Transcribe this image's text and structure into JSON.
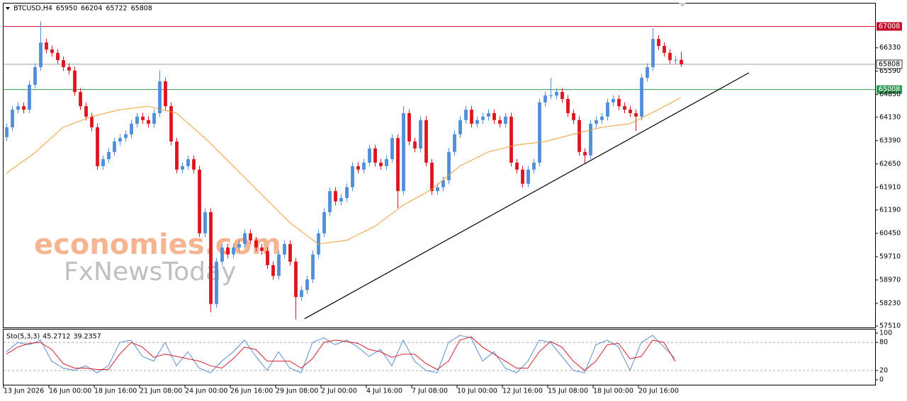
{
  "chart_data": {
    "type": "candlestick",
    "symbol": "BTCUSD,H4",
    "up_color": "#4f8fd9",
    "down_color": "#e0141e",
    "xlim": [
      -0.5,
      153.25
    ],
    "ylim": [
      57465,
      67735
    ],
    "yticks": [
      66330,
      65590,
      64850,
      64130,
      63390,
      62650,
      61910,
      61190,
      60450,
      59710,
      58970,
      58230,
      57510
    ],
    "xticks": [
      {
        "value": -0.5,
        "label": "13 Jun 2026"
      },
      {
        "value": 7.5,
        "label": "16 Jun 00:00"
      },
      {
        "value": 15.5,
        "label": "18 Jun 16:00"
      },
      {
        "value": 23.5,
        "label": "21 Jun 08:00"
      },
      {
        "value": 31.5,
        "label": "24 Jun 00:00"
      },
      {
        "value": 39.5,
        "label": "26 Jun 16:00"
      },
      {
        "value": 47.5,
        "label": "29 Jun 08:00"
      },
      {
        "value": 55.5,
        "label": "2 Jul 00:00"
      },
      {
        "value": 63.5,
        "label": "4 Jul 16:00"
      },
      {
        "value": 71.5,
        "label": "7 Jul 08:00"
      },
      {
        "value": 79.5,
        "label": "10 Jul 00:00"
      },
      {
        "value": 87.5,
        "label": "12 Jul 16:00"
      },
      {
        "value": 95.5,
        "label": "15 Jul 08:00"
      },
      {
        "value": 103.5,
        "label": "18 Jul 00:00"
      },
      {
        "value": 111.5,
        "label": "20 Jul 16:00"
      }
    ],
    "open": [
      63500,
      63810,
      64370,
      64480,
      64370,
      65160,
      65720,
      66500,
      66280,
      66170,
      65940,
      65720,
      65610,
      64930,
      64480,
      64150,
      63810,
      62580,
      62800,
      63030,
      63360,
      63470,
      63590,
      63925,
      64150,
      64040,
      63925,
      64260,
      65270,
      64480,
      63360,
      62470,
      62580,
      62800,
      62470,
      60450,
      61120,
      58210,
      59550,
      60000,
      59780,
      60000,
      60110,
      60450,
      60220,
      60000,
      59890,
      59440,
      59100,
      59780,
      60110,
      59550,
      58430,
      58650,
      58990,
      59780,
      60450,
      61120,
      61790,
      61460,
      61570,
      61910,
      62580,
      62470,
      62690,
      63140,
      62690,
      62580,
      62800,
      63470,
      61790,
      64260,
      63360,
      63140,
      64040,
      62690,
      61790,
      61910,
      62130,
      63030,
      63590,
      64040,
      64370,
      63925,
      64040,
      64150,
      64260,
      64040,
      63925,
      64150,
      62690,
      62470,
      62020,
      62470,
      62690,
      64600,
      64820,
      64820,
      64930,
      64710,
      64260,
      64040,
      63030,
      62920,
      63925,
      64040,
      64150,
      64600,
      64710,
      64480,
      64370,
      64260,
      64150,
      65380,
      65720,
      66610,
      66390,
      66170,
      65940,
      65950
    ],
    "high": [
      63930,
      64490,
      64600,
      64600,
      65280,
      65840,
      67170,
      66620,
      66400,
      66290,
      66060,
      65840,
      65730,
      65050,
      64600,
      64270,
      63930,
      62920,
      63150,
      63480,
      63590,
      63710,
      64045,
      64270,
      64270,
      64160,
      64380,
      65620,
      65390,
      64600,
      63480,
      62700,
      62920,
      62920,
      62590,
      61240,
      61240,
      59670,
      60120,
      60120,
      60120,
      60230,
      60570,
      60570,
      60340,
      60120,
      60010,
      59560,
      59900,
      60230,
      60230,
      59670,
      58770,
      59110,
      59900,
      60570,
      61240,
      61910,
      61910,
      61690,
      62030,
      62700,
      62700,
      62810,
      63260,
      63260,
      62810,
      62920,
      63590,
      63590,
      64480,
      64380,
      63480,
      64160,
      64160,
      62810,
      62030,
      62250,
      63150,
      63710,
      64160,
      64490,
      64490,
      64160,
      64270,
      64380,
      64380,
      64160,
      64270,
      64270,
      62810,
      62590,
      62590,
      62810,
      64720,
      64940,
      65380,
      65050,
      65050,
      64830,
      64380,
      64160,
      63150,
      64045,
      64160,
      64270,
      64720,
      64830,
      64830,
      64600,
      64490,
      64380,
      65500,
      65840,
      66950,
      66730,
      66510,
      66290,
      66070,
      66204
    ],
    "low": [
      63380,
      63690,
      64250,
      64250,
      64250,
      65040,
      65600,
      66160,
      66050,
      65820,
      65600,
      65490,
      64810,
      64360,
      64030,
      63690,
      62460,
      62460,
      62680,
      62910,
      63240,
      63350,
      63470,
      63805,
      63920,
      63805,
      63805,
      64140,
      64360,
      63240,
      62350,
      62350,
      62460,
      62350,
      60330,
      60330,
      57950,
      58090,
      59430,
      59660,
      59660,
      59880,
      59990,
      60100,
      59880,
      59770,
      59320,
      58980,
      58980,
      59660,
      59430,
      57720,
      58310,
      58530,
      58870,
      59660,
      60330,
      61000,
      61340,
      61340,
      61450,
      61790,
      62350,
      62350,
      62570,
      62570,
      62460,
      62460,
      62680,
      61250,
      61670,
      63240,
      63020,
      63020,
      62570,
      61670,
      61670,
      61790,
      62010,
      62910,
      63470,
      63920,
      63805,
      63805,
      63920,
      64030,
      63920,
      63805,
      63805,
      62570,
      62350,
      61900,
      61900,
      62350,
      62570,
      64480,
      64700,
      64700,
      64590,
      64140,
      63920,
      62910,
      62650,
      62800,
      63805,
      63920,
      64030,
      64480,
      64360,
      64250,
      64140,
      63700,
      64030,
      65260,
      65600,
      66270,
      66050,
      65820,
      65820,
      65722
    ],
    "close": [
      63810,
      64370,
      64480,
      64370,
      65160,
      65720,
      66500,
      66280,
      66170,
      65940,
      65720,
      65610,
      64930,
      64480,
      64150,
      63810,
      62580,
      62800,
      63030,
      63360,
      63470,
      63590,
      63925,
      64150,
      64040,
      63925,
      64260,
      65270,
      64480,
      63360,
      62470,
      62580,
      62800,
      62470,
      60450,
      61120,
      58210,
      59550,
      60000,
      59780,
      60000,
      60110,
      60450,
      60220,
      60000,
      59890,
      59440,
      59100,
      59780,
      60110,
      59550,
      58430,
      58650,
      58990,
      59780,
      60450,
      61120,
      61790,
      61460,
      61570,
      61910,
      62580,
      62470,
      62690,
      63140,
      62690,
      62580,
      62800,
      63470,
      61790,
      64260,
      63360,
      63140,
      64040,
      62690,
      61790,
      61910,
      62130,
      63030,
      63590,
      64040,
      64370,
      63925,
      64040,
      64150,
      64260,
      64040,
      63925,
      64150,
      62690,
      62470,
      62020,
      62470,
      62690,
      64600,
      64820,
      64820,
      64930,
      64710,
      64260,
      64040,
      63030,
      62920,
      63925,
      64040,
      64150,
      64600,
      64710,
      64480,
      64370,
      64260,
      64150,
      65380,
      65720,
      66610,
      66390,
      66170,
      65940,
      65950,
      65808
    ],
    "ma": {
      "color": "#f39c34",
      "x": [
        0,
        5,
        10,
        15,
        20,
        25,
        30,
        35,
        40,
        45,
        50,
        55,
        60,
        65,
        70,
        75,
        80,
        85,
        90,
        95,
        100,
        105,
        110,
        115,
        119
      ],
      "values": [
        62355,
        63000,
        63810,
        64150,
        64370,
        64480,
        64260,
        63475,
        62580,
        61680,
        60785,
        60110,
        60225,
        60670,
        61345,
        61840,
        62580,
        63030,
        63250,
        63360,
        63590,
        63810,
        63925,
        64370,
        64755
      ]
    },
    "trendline": {
      "color": "#000000",
      "x": [
        52.6,
        131
      ],
      "values": [
        57740,
        65540
      ]
    },
    "hlines": [
      {
        "value": 67008,
        "color": "#c8102e"
      },
      {
        "value": 65008,
        "color": "#2e9b57"
      }
    ],
    "current_price_color": "#a0a0a0",
    "watermark": {
      "brand": "economies.com",
      "brand_color": "#f39c6b",
      "sub": "FxNewsToday",
      "sub_color": "#b0b0b0"
    },
    "stochastic": {
      "label": "Sto(5,3,3)",
      "main_value": 45.2712,
      "signal_value": 39.2357,
      "ylim": [
        -12.1,
        107.6
      ],
      "yticks": [
        100,
        80,
        20,
        0
      ],
      "levels": [
        80,
        20
      ],
      "x": [
        0,
        2,
        4,
        6,
        8,
        10,
        12,
        14,
        16,
        18,
        20,
        22,
        24,
        26,
        28,
        30,
        32,
        34,
        36,
        38,
        40,
        42,
        44,
        46,
        48,
        50,
        52,
        54,
        56,
        58,
        60,
        62,
        64,
        66,
        68,
        70,
        72,
        74,
        76,
        78,
        80,
        82,
        84,
        86,
        88,
        90,
        92,
        94,
        96,
        98,
        100,
        102,
        104,
        106,
        108,
        110,
        112,
        114,
        116,
        118
      ],
      "main": {
        "color": "#5b8fd6",
        "values": [
          60,
          80,
          75,
          85,
          40,
          25,
          20,
          30,
          15,
          30,
          80,
          85,
          50,
          40,
          80,
          30,
          60,
          25,
          15,
          40,
          60,
          85,
          50,
          20,
          60,
          25,
          15,
          80,
          90,
          75,
          85,
          70,
          50,
          65,
          30,
          85,
          40,
          20,
          15,
          80,
          95,
          90,
          40,
          60,
          25,
          15,
          40,
          85,
          80,
          50,
          20,
          15,
          75,
          85,
          70,
          20,
          80,
          95,
          70,
          45
        ]
      },
      "signal": {
        "color": "#d4202a",
        "values": [
          55,
          70,
          78,
          80,
          65,
          35,
          25,
          25,
          22,
          22,
          55,
          80,
          70,
          48,
          55,
          50,
          45,
          40,
          30,
          25,
          45,
          70,
          65,
          40,
          40,
          40,
          25,
          45,
          80,
          85,
          82,
          78,
          65,
          60,
          48,
          55,
          55,
          35,
          22,
          40,
          85,
          92,
          70,
          55,
          40,
          25,
          25,
          60,
          82,
          70,
          40,
          20,
          40,
          75,
          78,
          45,
          50,
          85,
          80,
          39
        ]
      }
    }
  }
}
